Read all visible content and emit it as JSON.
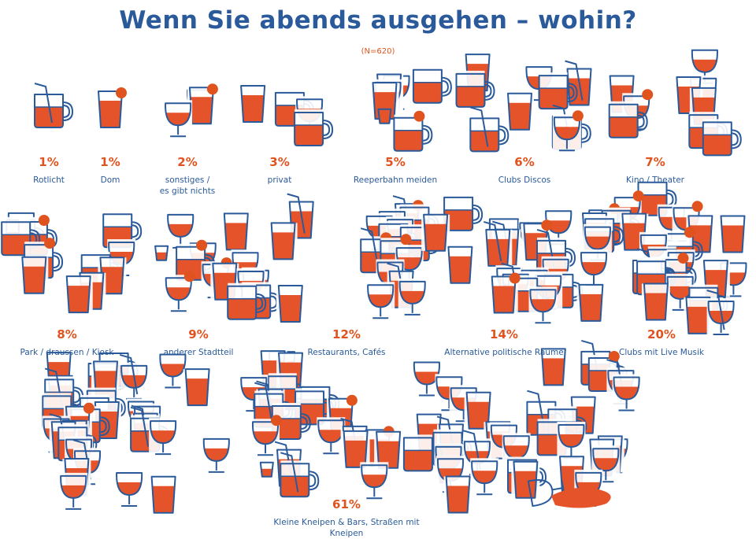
{
  "title": "Wenn Sie abends ausgehen – wohin?",
  "subtitle": "(N=620)",
  "colors": {
    "outline": "#2a5a9a",
    "drink": "#e5532a",
    "percent": "#e0531f",
    "label": "#2a5a9a"
  },
  "chart_data": {
    "type": "pictorial",
    "title": "Wenn Sie abends ausgehen – wohin?",
    "subtitle": "(N=620)",
    "unit": "%",
    "categories": [
      "Rotlicht",
      "Dom",
      "sonstiges /\nes gibt nichts",
      "privat",
      "Reeperbahn meiden",
      "Clubs Discos",
      "Kino / Theater",
      "Park / draussen / Kiosk",
      "anderer Stadtteil",
      "Restaurants, Cafés",
      "Alternative politische Räume",
      "Clubs mit Live Musik",
      "Kleine Kneipen & Bars, Straßen mit Kneipen"
    ],
    "values": [
      1,
      1,
      2,
      3,
      5,
      6,
      7,
      8,
      9,
      12,
      14,
      20,
      61
    ],
    "labels": [
      "1%",
      "1%",
      "2%",
      "3%",
      "5%",
      "6%",
      "7%",
      "8%",
      "9%",
      "12%",
      "14%",
      "20%",
      "61%"
    ]
  }
}
